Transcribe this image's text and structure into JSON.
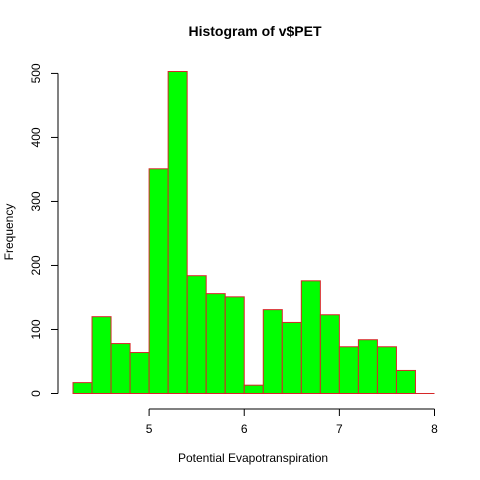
{
  "chart_data": {
    "type": "bar",
    "title": "Histogram of v$PET",
    "xlabel": "Potential Evapotranspiration",
    "ylabel": "Frequency",
    "bin_width": 0.2,
    "bin_starts": [
      4.2,
      4.4,
      4.6,
      4.8,
      5.0,
      5.2,
      5.4,
      5.6,
      5.8,
      6.0,
      6.2,
      6.4,
      6.6,
      6.8,
      7.0,
      7.2,
      7.4,
      7.6,
      7.8
    ],
    "values": [
      17,
      120,
      78,
      64,
      351,
      503,
      184,
      156,
      151,
      13,
      131,
      111,
      176,
      123,
      73,
      84,
      73,
      36,
      0
    ],
    "xlim": [
      4.2,
      8.0
    ],
    "ylim": [
      0,
      503
    ],
    "x_ticks": [
      5,
      6,
      7,
      8
    ],
    "y_ticks": [
      0,
      100,
      200,
      300,
      400,
      500
    ],
    "bar_fill": "#00ff00",
    "bar_stroke": "#d62728",
    "grid": false
  }
}
